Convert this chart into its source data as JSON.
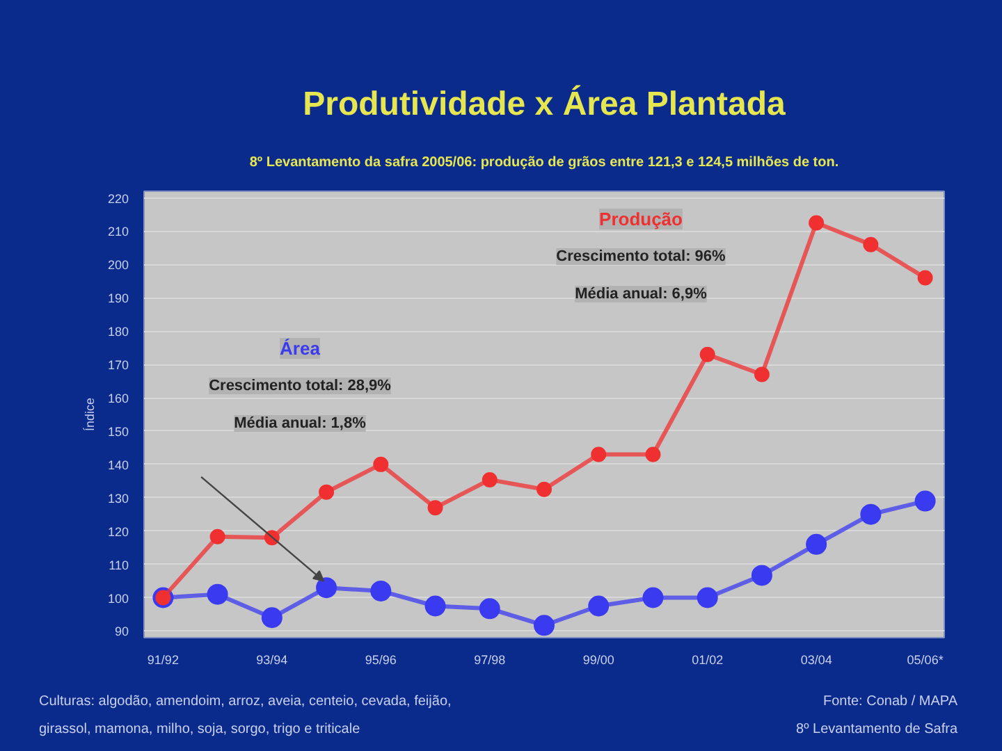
{
  "chart_data": {
    "type": "line",
    "title": "Produtividade x Área Plantada",
    "subtitle": "8º Levantamento da safra 2005/06: produção de grãos entre 121,3 e 124,5 milhões de ton.",
    "ylabel": "Índice",
    "categories": [
      "91/92",
      null,
      "93/94",
      null,
      "95/96",
      null,
      "97/98",
      null,
      "99/00",
      null,
      "01/02",
      null,
      "03/04",
      null,
      "05/06*"
    ],
    "series": [
      {
        "name": "Área",
        "color": "#3a3af0",
        "values": [
          100,
          101,
          94,
          103,
          102,
          97.5,
          96.7,
          91.7,
          97.5,
          100,
          100,
          106.7,
          116,
          125,
          129
        ]
      },
      {
        "name": "Produção",
        "color": "#f03030",
        "values": [
          100,
          118.3,
          118,
          131.7,
          140,
          127,
          135.4,
          132.5,
          143,
          143,
          173,
          167,
          212.5,
          206,
          196
        ]
      }
    ],
    "ylim": [
      88,
      222
    ],
    "yticks": [
      90,
      100,
      110,
      120,
      130,
      140,
      150,
      160,
      170,
      180,
      190,
      200,
      210,
      220
    ],
    "grid": "y",
    "marker": "circle",
    "line_style": "solid",
    "annotations": [
      "Crescimento total: 28,9%",
      "Média anual: 1,8%",
      "Crescimento total: 96%",
      "Média anual: 6,9%",
      "Culturas: algodão, amendoim, arroz, aveia, centeio, cevada, feijão,",
      "girassol, mamona, milho, soja, sorgo, trigo e triticale",
      "Fonte: Conab / MAPA",
      "8º Levantamento de Safra"
    ]
  }
}
